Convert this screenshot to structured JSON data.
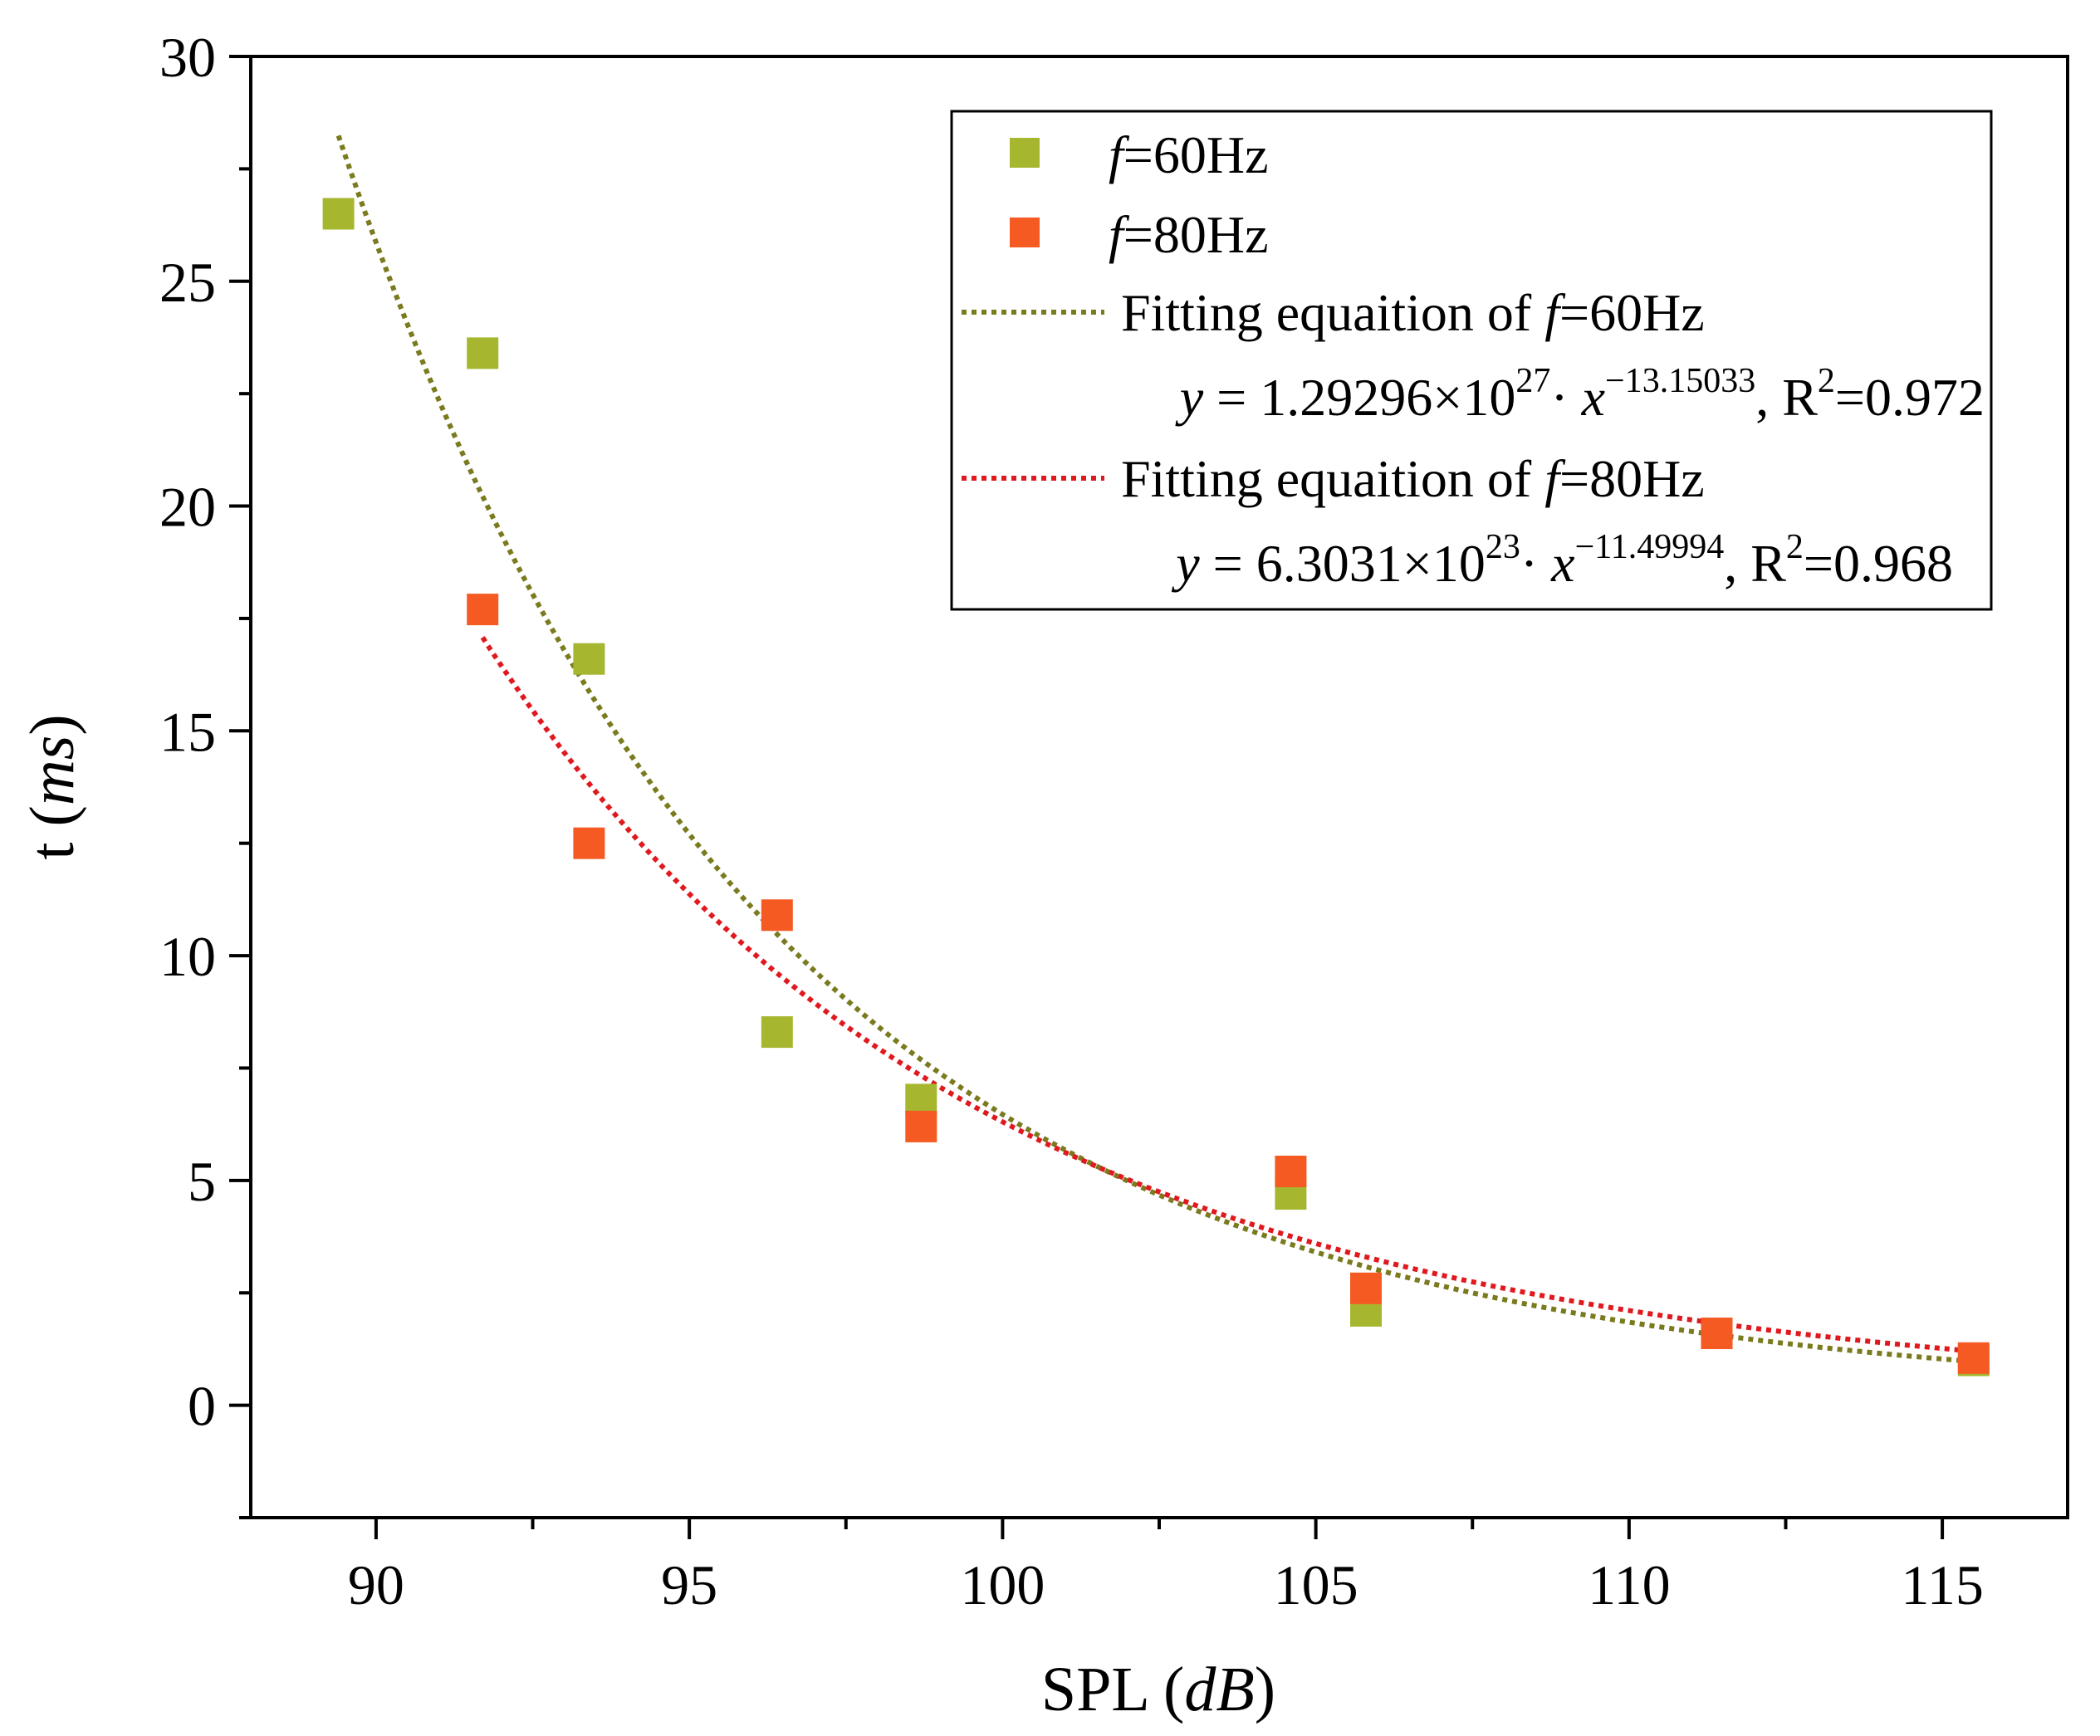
{
  "chart_data": {
    "type": "scatter",
    "xlabel": {
      "main": "SPL (",
      "var": "dB",
      "close": ")"
    },
    "ylabel": {
      "main": "t (",
      "var": "ms",
      "close": ")"
    },
    "xlim": [
      88,
      117
    ],
    "ylim": [
      -2.5,
      30
    ],
    "xticks": [
      90,
      95,
      100,
      105,
      110,
      115
    ],
    "xticks_minor": [
      92.5,
      97.5,
      102.5,
      107.5,
      112.5
    ],
    "yticks": [
      0,
      5,
      10,
      15,
      20,
      25,
      30
    ],
    "grid": false,
    "legend_position": "top-right",
    "series": [
      {
        "name": "f=60Hz",
        "legend_italic": "f",
        "legend_rest": "=60Hz",
        "color": "#a6b72f",
        "marker": "square",
        "x": [
          89.4,
          91.7,
          93.4,
          96.4,
          98.7,
          104.6,
          105.8,
          111.4,
          115.5
        ],
        "y": [
          26.5,
          23.4,
          16.6,
          8.3,
          6.8,
          4.7,
          2.1,
          1.6,
          1.0
        ]
      },
      {
        "name": "f=80Hz",
        "legend_italic": "f",
        "legend_rest": "=80Hz",
        "color": "#f45a22",
        "marker": "square",
        "x": [
          91.7,
          93.4,
          96.4,
          98.7,
          104.6,
          105.8,
          111.4,
          115.5
        ],
        "y": [
          17.7,
          12.5,
          10.9,
          6.2,
          5.2,
          2.6,
          1.6,
          1.05
        ]
      }
    ],
    "fits": [
      {
        "label_prefix": "Fitting equaition of ",
        "label_italic": "f",
        "label_suffix": "=60Hz",
        "color": "#7a7a1e",
        "a": 1.29296e+27,
        "b": -13.15033,
        "x_range": [
          89.4,
          115.5
        ],
        "eq": {
          "y": "y",
          "eq_mid": " = 1.29296×10",
          "exp1": "27",
          "dot": "· ",
          "x": "x",
          "exp2": "−13.15033",
          "r2_pre": ", R",
          "r2_exp": "2",
          "r2_val": "=0.972"
        }
      },
      {
        "label_prefix": "Fitting equaition of ",
        "label_italic": "f",
        "label_suffix": "=80Hz",
        "color": "#e0191f",
        "a": 6.3031e+23,
        "b": -11.49994,
        "x_range": [
          91.7,
          115.5
        ],
        "eq": {
          "y": "y",
          "eq_mid": " = 6.3031×10",
          "exp1": "23",
          "dot": "· ",
          "x": "x",
          "exp2": "−11.49994",
          "r2_pre": ", R",
          "r2_exp": "2",
          "r2_val": "=0.968"
        }
      }
    ]
  }
}
